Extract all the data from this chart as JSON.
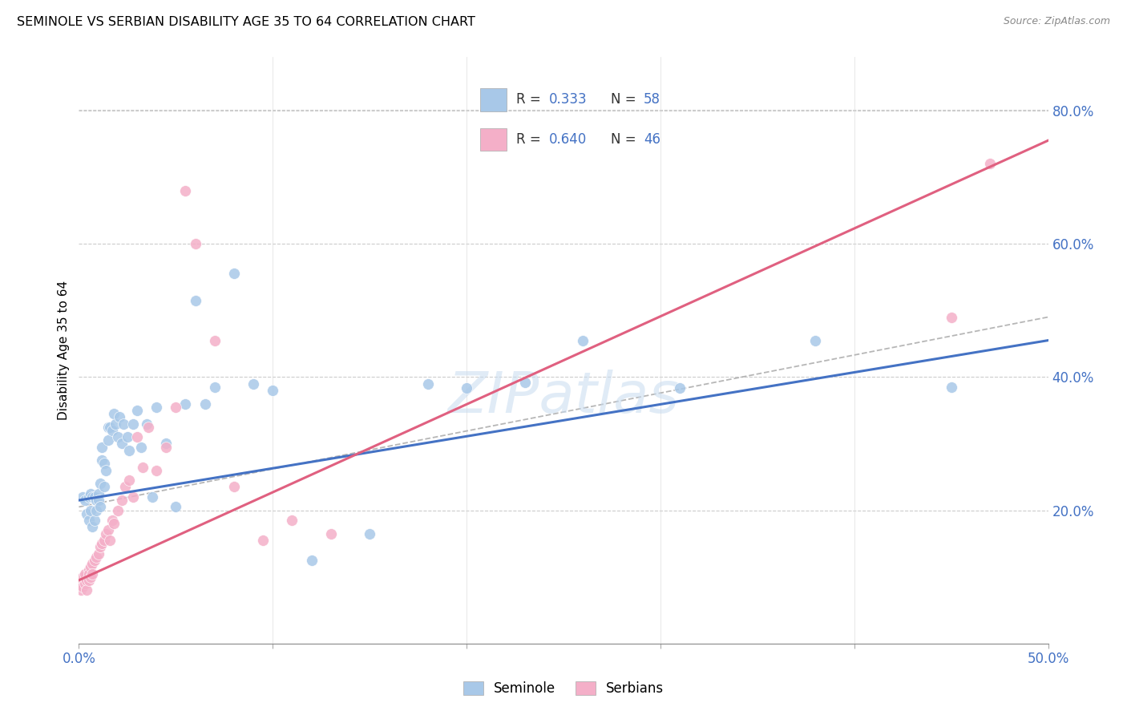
{
  "title": "SEMINOLE VS SERBIAN DISABILITY AGE 35 TO 64 CORRELATION CHART",
  "source": "Source: ZipAtlas.com",
  "ylabel": "Disability Age 35 to 64",
  "xmin": 0.0,
  "xmax": 0.5,
  "ymin": 0.0,
  "ymax": 0.88,
  "blue_fill": "#a8c8e8",
  "pink_fill": "#f4afc8",
  "blue_line": "#4472c4",
  "pink_line": "#e06080",
  "gray_line": "#aaaaaa",
  "tick_color": "#4472c4",
  "watermark_color": "#c8dcf0",
  "seminole_x": [
    0.002,
    0.003,
    0.004,
    0.005,
    0.005,
    0.006,
    0.006,
    0.007,
    0.007,
    0.008,
    0.008,
    0.009,
    0.009,
    0.01,
    0.01,
    0.011,
    0.011,
    0.012,
    0.012,
    0.013,
    0.013,
    0.014,
    0.015,
    0.015,
    0.016,
    0.017,
    0.018,
    0.019,
    0.02,
    0.021,
    0.022,
    0.023,
    0.025,
    0.026,
    0.028,
    0.03,
    0.032,
    0.035,
    0.038,
    0.04,
    0.045,
    0.05,
    0.055,
    0.06,
    0.065,
    0.07,
    0.08,
    0.09,
    0.1,
    0.12,
    0.15,
    0.18,
    0.2,
    0.23,
    0.26,
    0.31,
    0.38,
    0.45
  ],
  "seminole_y": [
    0.22,
    0.215,
    0.195,
    0.22,
    0.185,
    0.225,
    0.2,
    0.22,
    0.175,
    0.22,
    0.185,
    0.215,
    0.2,
    0.225,
    0.215,
    0.24,
    0.205,
    0.275,
    0.295,
    0.27,
    0.235,
    0.26,
    0.305,
    0.325,
    0.325,
    0.32,
    0.345,
    0.33,
    0.31,
    0.34,
    0.3,
    0.33,
    0.31,
    0.29,
    0.33,
    0.35,
    0.295,
    0.33,
    0.22,
    0.355,
    0.3,
    0.205,
    0.36,
    0.515,
    0.36,
    0.385,
    0.555,
    0.39,
    0.38,
    0.125,
    0.165,
    0.39,
    0.383,
    0.392,
    0.455,
    0.383,
    0.455,
    0.385
  ],
  "serbian_x": [
    0.001,
    0.001,
    0.002,
    0.002,
    0.003,
    0.003,
    0.004,
    0.004,
    0.005,
    0.005,
    0.005,
    0.006,
    0.006,
    0.007,
    0.007,
    0.008,
    0.009,
    0.01,
    0.011,
    0.012,
    0.013,
    0.014,
    0.015,
    0.016,
    0.017,
    0.018,
    0.02,
    0.022,
    0.024,
    0.026,
    0.028,
    0.03,
    0.033,
    0.036,
    0.04,
    0.045,
    0.05,
    0.055,
    0.06,
    0.07,
    0.08,
    0.095,
    0.11,
    0.13,
    0.45,
    0.47
  ],
  "serbian_y": [
    0.09,
    0.08,
    0.1,
    0.085,
    0.105,
    0.09,
    0.095,
    0.08,
    0.11,
    0.095,
    0.105,
    0.115,
    0.1,
    0.12,
    0.105,
    0.125,
    0.13,
    0.135,
    0.145,
    0.15,
    0.155,
    0.165,
    0.17,
    0.155,
    0.185,
    0.18,
    0.2,
    0.215,
    0.235,
    0.245,
    0.22,
    0.31,
    0.265,
    0.325,
    0.26,
    0.295,
    0.355,
    0.68,
    0.6,
    0.455,
    0.235,
    0.155,
    0.185,
    0.165,
    0.49,
    0.72
  ],
  "blue_trendline_x0": 0.0,
  "blue_trendline_y0": 0.215,
  "blue_trendline_x1": 0.5,
  "blue_trendline_y1": 0.455,
  "pink_trendline_x0": 0.0,
  "pink_trendline_y0": 0.095,
  "pink_trendline_x1": 0.5,
  "pink_trendline_y1": 0.755,
  "gray_trendline_x0": 0.0,
  "gray_trendline_y0": 0.205,
  "gray_trendline_x1": 0.5,
  "gray_trendline_y1": 0.49
}
